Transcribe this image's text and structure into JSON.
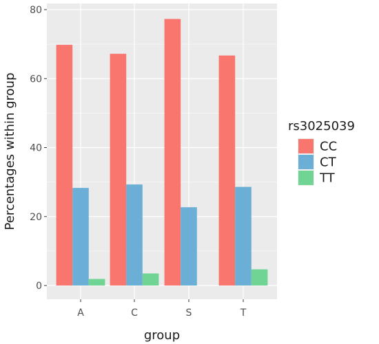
{
  "chart_data": {
    "type": "bar",
    "xlabel": "group",
    "ylabel": "Percentages within group",
    "categories": [
      "A",
      "C",
      "S",
      "T"
    ],
    "ylim": [
      -4,
      80
    ],
    "yticks": [
      0,
      20,
      40,
      60,
      80
    ],
    "grid": true,
    "legend": {
      "title": "rs3025039",
      "placement": "right"
    },
    "series": [
      {
        "name": "CC",
        "color": "#F8766D",
        "values": [
          69.8,
          67.2,
          77.3,
          66.7
        ]
      },
      {
        "name": "CT",
        "color": "#6BAED6",
        "values": [
          28.3,
          29.3,
          22.7,
          28.6
        ]
      },
      {
        "name": "TT",
        "color": "#6FD494",
        "values": [
          1.9,
          3.5,
          0.0,
          4.7
        ]
      }
    ]
  }
}
